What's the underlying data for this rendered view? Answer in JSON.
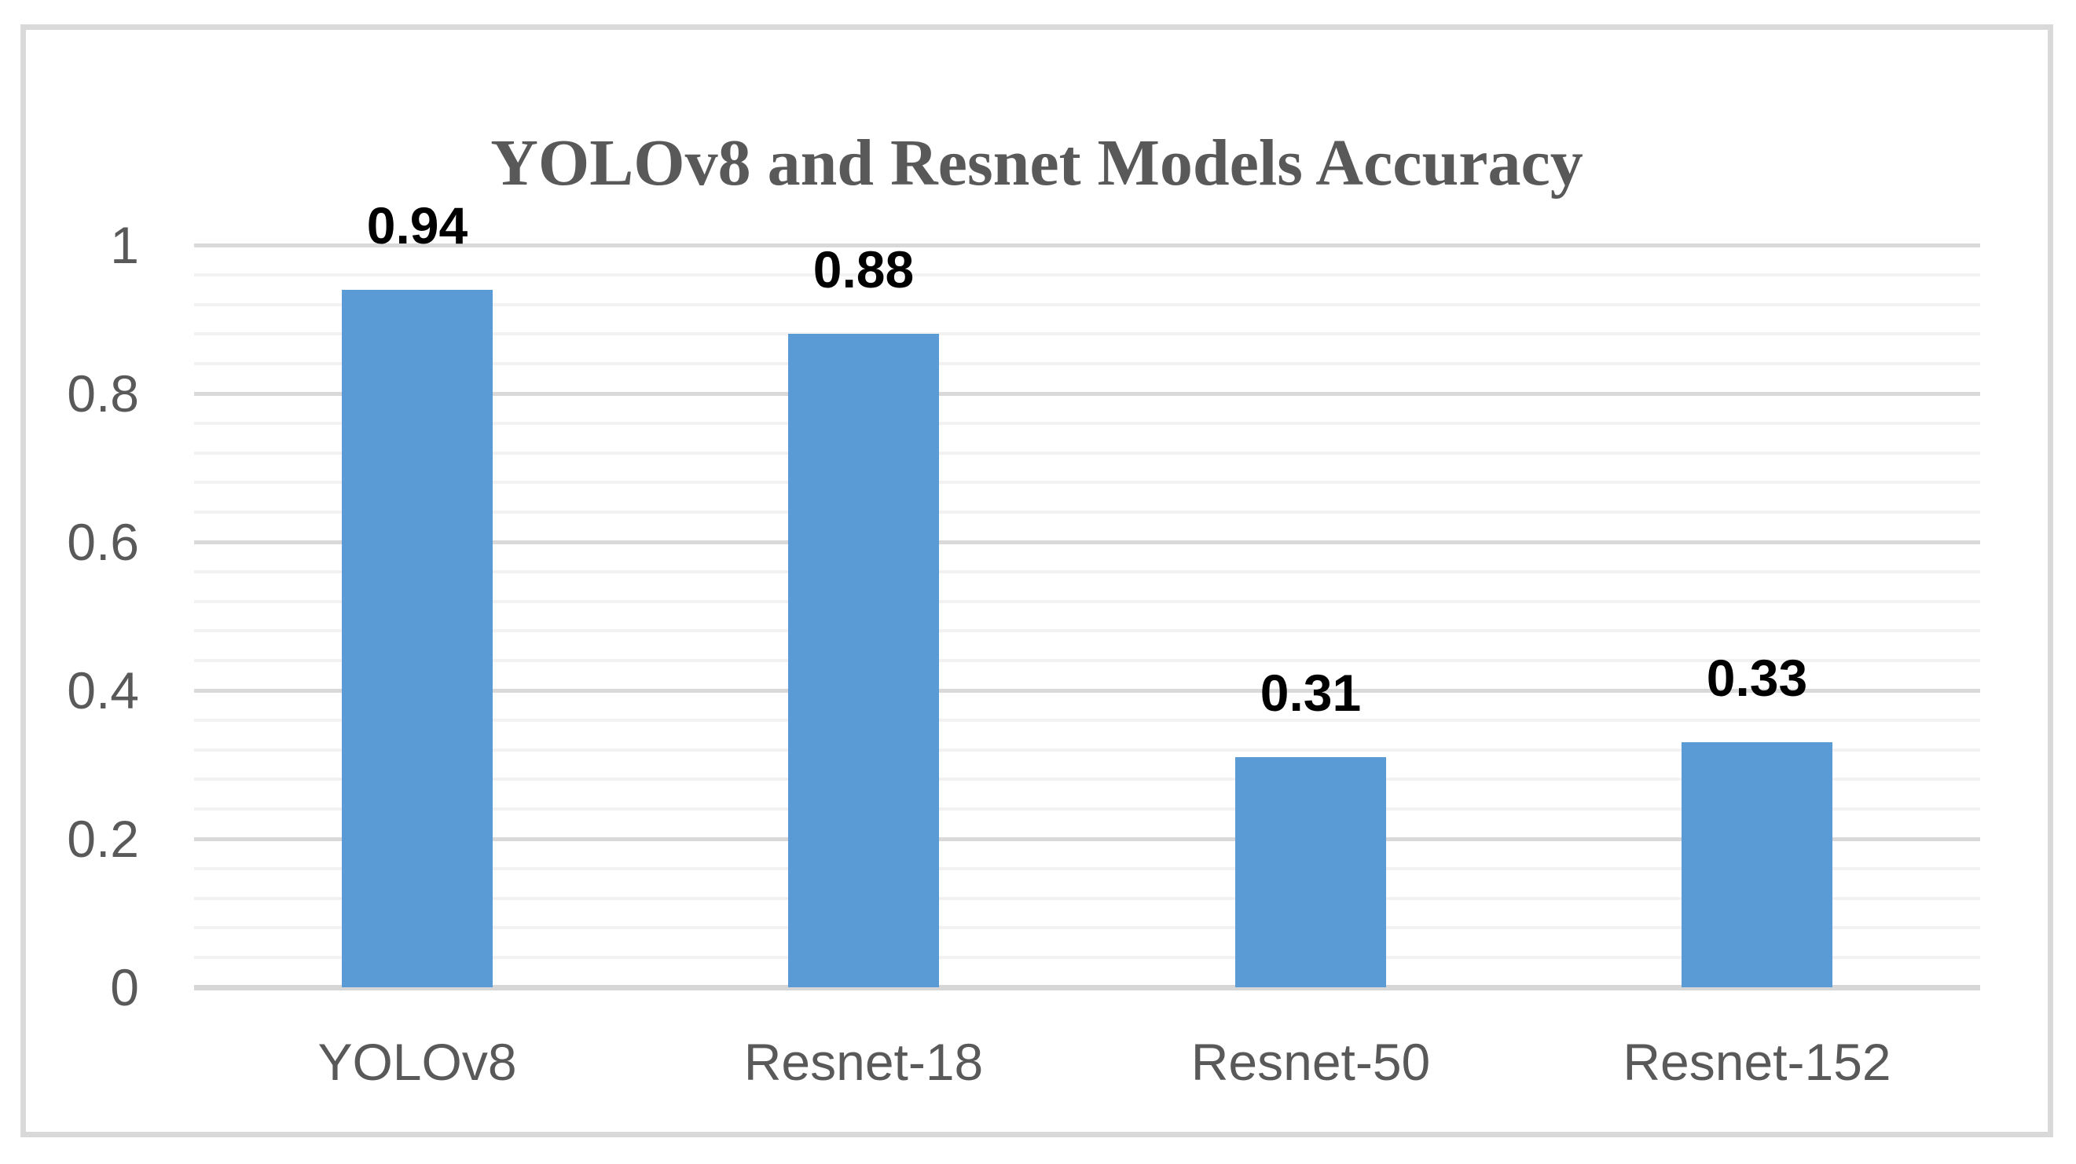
{
  "chart_data": {
    "type": "bar",
    "title": "YOLOv8 and Resnet Models Accuracy",
    "categories": [
      "YOLOv8",
      "Resnet-18",
      "Resnet-50",
      "Resnet-152"
    ],
    "values": [
      0.94,
      0.88,
      0.31,
      0.33
    ],
    "value_labels": [
      "0.94",
      "0.88",
      "0.31",
      "0.33"
    ],
    "xlabel": "",
    "ylabel": "",
    "ylim": [
      0,
      1
    ],
    "y_major_unit": 0.2,
    "y_minor_unit": 0.04,
    "y_tick_labels": [
      "0",
      "0.2",
      "0.4",
      "0.6",
      "0.8",
      "1"
    ],
    "grid": "horizontal major and minor gridlines on",
    "legend_position": "none",
    "colors": {
      "bar_fill": "#5B9BD5",
      "major_gridline": "#D9D9D9",
      "minor_gridline": "#F2F2F2",
      "axis_line": "#D6D6D6",
      "axis_text": "#595959",
      "title_text": "#595959",
      "data_label_text": "#000000",
      "chart_border": "#D9D9D9",
      "background": "#FFFFFF"
    }
  }
}
